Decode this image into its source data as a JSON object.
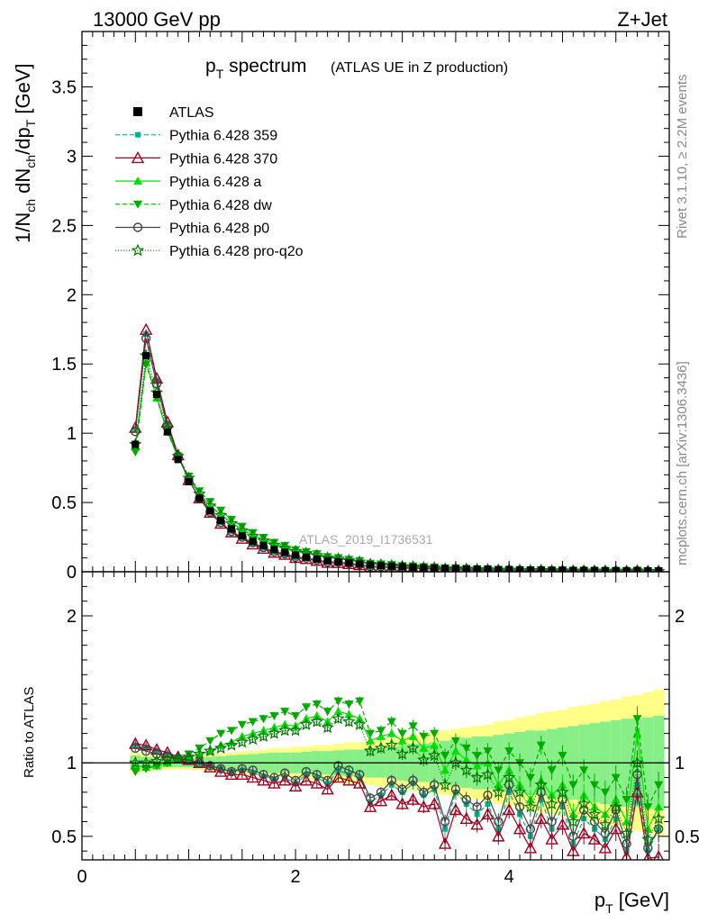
{
  "header": {
    "left": "13000 GeV pp",
    "right": "Z+Jet"
  },
  "title": {
    "main": "p",
    "main_sub": "T",
    "main_rest": " spectrum",
    "paren": "(ATLAS UE in Z production)"
  },
  "watermark": "ATLAS_2019_I1736531",
  "side_text": {
    "rivet": "Rivet 3.1.10, ≥ 2.2M events",
    "mcplots": "mcplots.cern.ch [arXiv:1306.3436]"
  },
  "axes": {
    "ylabel_main": "1/N_ch dN_ch/dp_T [GeV]",
    "ylabel_ratio": "Ratio to ATLAS",
    "xlabel": "p_T [GeV]"
  },
  "colors": {
    "atlas": "#000000",
    "p359": "#00b386",
    "p370": "#990020",
    "pa": "#00e000",
    "pdw": "#00aa00",
    "pp0": "#444444",
    "ppro": "#007700",
    "band_outer": "#ffff88",
    "band_inner": "#88ee88"
  },
  "chart_data": {
    "type": "line",
    "xlim": [
      0,
      5.5
    ],
    "ylim_main": [
      0,
      3.9
    ],
    "ylim_ratio": [
      0.34,
      2.3
    ],
    "x_ticks": [
      0,
      2,
      4
    ],
    "y_ticks_main": [
      0,
      0.5,
      1,
      1.5,
      2,
      2.5,
      3,
      3.5
    ],
    "y_ticks_ratio": [
      0.5,
      1,
      2
    ],
    "x": [
      0.5,
      0.6,
      0.7,
      0.8,
      0.9,
      1.0,
      1.1,
      1.2,
      1.3,
      1.4,
      1.5,
      1.6,
      1.7,
      1.8,
      1.9,
      2.0,
      2.1,
      2.2,
      2.3,
      2.4,
      2.5,
      2.6,
      2.7,
      2.8,
      2.9,
      3.0,
      3.1,
      3.2,
      3.3,
      3.4,
      3.5,
      3.6,
      3.7,
      3.8,
      3.9,
      4.0,
      4.1,
      4.2,
      4.3,
      4.4,
      4.5,
      4.6,
      4.7,
      4.8,
      4.9,
      5.0,
      5.1,
      5.2,
      5.3,
      5.4
    ],
    "atlas": [
      0.92,
      1.56,
      1.28,
      1.01,
      0.81,
      0.65,
      0.53,
      0.44,
      0.37,
      0.31,
      0.26,
      0.22,
      0.19,
      0.16,
      0.14,
      0.12,
      0.105,
      0.092,
      0.08,
      0.071,
      0.063,
      0.056,
      0.05,
      0.045,
      0.04,
      0.036,
      0.033,
      0.03,
      0.027,
      0.025,
      0.023,
      0.021,
      0.019,
      0.018,
      0.016,
      0.015,
      0.014,
      0.013,
      0.012,
      0.011,
      0.0105,
      0.01,
      0.0095,
      0.009,
      0.0085,
      0.008,
      0.0076,
      0.0072,
      0.0068,
      0.0065
    ],
    "band_inner": [
      0.05,
      0.04,
      0.035,
      0.03,
      0.03,
      0.03,
      0.035,
      0.04,
      0.045,
      0.05,
      0.055,
      0.06,
      0.065,
      0.07,
      0.07,
      0.07,
      0.075,
      0.08,
      0.08,
      0.085,
      0.09,
      0.09,
      0.1,
      0.1,
      0.11,
      0.12,
      0.13,
      0.13,
      0.14,
      0.15,
      0.16,
      0.17,
      0.18,
      0.18,
      0.19,
      0.2,
      0.21,
      0.22,
      0.22,
      0.23,
      0.24,
      0.25,
      0.26,
      0.27,
      0.28,
      0.29,
      0.3,
      0.3,
      0.31,
      0.32
    ],
    "band_outer": [
      0.07,
      0.06,
      0.05,
      0.045,
      0.045,
      0.045,
      0.05,
      0.06,
      0.065,
      0.07,
      0.08,
      0.085,
      0.09,
      0.1,
      0.1,
      0.11,
      0.11,
      0.12,
      0.12,
      0.13,
      0.14,
      0.14,
      0.15,
      0.16,
      0.17,
      0.18,
      0.19,
      0.2,
      0.21,
      0.22,
      0.23,
      0.24,
      0.25,
      0.26,
      0.28,
      0.29,
      0.31,
      0.32,
      0.34,
      0.35,
      0.36,
      0.38,
      0.39,
      0.4,
      0.42,
      0.43,
      0.45,
      0.46,
      0.48,
      0.5
    ],
    "series": [
      {
        "key": "p359",
        "name": "Pythia 6.428 359",
        "marker": "square",
        "dash": "5,3",
        "ratio": [
          1.12,
          1.1,
          1.08,
          1.06,
          1.04,
          1.02,
          1.0,
          0.98,
          0.96,
          0.94,
          0.95,
          0.93,
          0.91,
          0.89,
          0.9,
          0.86,
          0.92,
          0.9,
          0.86,
          0.95,
          0.92,
          0.9,
          0.73,
          0.78,
          0.85,
          0.8,
          0.86,
          0.78,
          0.82,
          0.55,
          0.8,
          0.72,
          0.65,
          0.72,
          0.55,
          0.8,
          0.65,
          0.5,
          0.75,
          0.55,
          0.7,
          0.45,
          0.62,
          0.55,
          0.48,
          0.62,
          0.4,
          0.85,
          0.4,
          0.55
        ]
      },
      {
        "key": "p370",
        "name": "Pythia 6.428 370",
        "marker": "triangle-open",
        "dash": "",
        "ratio": [
          1.13,
          1.12,
          1.09,
          1.07,
          1.04,
          1.02,
          1.0,
          0.97,
          0.94,
          0.92,
          0.92,
          0.9,
          0.88,
          0.86,
          0.88,
          0.84,
          0.88,
          0.86,
          0.82,
          0.9,
          0.88,
          0.86,
          0.7,
          0.74,
          0.78,
          0.72,
          0.75,
          0.7,
          0.72,
          0.45,
          0.68,
          0.62,
          0.58,
          0.65,
          0.5,
          0.68,
          0.55,
          0.42,
          0.62,
          0.48,
          0.58,
          0.4,
          0.52,
          0.48,
          0.42,
          0.55,
          0.36,
          0.8,
          0.35,
          0.36
        ]
      },
      {
        "key": "pa",
        "name": "Pythia 6.428 a",
        "marker": "triangle",
        "dash": "",
        "ratio": [
          0.98,
          0.97,
          0.98,
          1.0,
          1.02,
          1.04,
          1.06,
          1.08,
          1.12,
          1.14,
          1.18,
          1.2,
          1.22,
          1.24,
          1.26,
          1.25,
          1.3,
          1.32,
          1.28,
          1.35,
          1.33,
          1.3,
          1.15,
          1.18,
          1.2,
          1.15,
          1.18,
          1.1,
          1.12,
          0.95,
          1.08,
          1.02,
          0.98,
          1.0,
          0.85,
          0.95,
          0.85,
          0.75,
          0.88,
          0.78,
          0.85,
          0.65,
          0.78,
          0.7,
          0.65,
          0.75,
          0.6,
          1.2,
          0.55,
          0.7
        ]
      },
      {
        "key": "pdw",
        "name": "Pythia 6.428 dw",
        "marker": "triangle-down",
        "dash": "5,3",
        "ratio": [
          0.94,
          0.96,
          0.98,
          1.0,
          1.03,
          1.06,
          1.1,
          1.15,
          1.2,
          1.22,
          1.26,
          1.28,
          1.3,
          1.32,
          1.35,
          1.32,
          1.38,
          1.4,
          1.35,
          1.42,
          1.4,
          1.42,
          1.2,
          1.22,
          1.28,
          1.2,
          1.25,
          1.18,
          1.2,
          1.05,
          1.15,
          1.1,
          1.05,
          1.08,
          0.95,
          1.08,
          1.0,
          0.9,
          1.12,
          0.95,
          1.05,
          0.85,
          0.95,
          0.85,
          0.8,
          0.9,
          0.75,
          1.3,
          0.7,
          0.85
        ]
      },
      {
        "key": "pp0",
        "name": "Pythia 6.428 p0",
        "marker": "circle-open",
        "dash": "",
        "ratio": [
          1.1,
          1.08,
          1.06,
          1.04,
          1.03,
          1.02,
          1.0,
          0.98,
          0.96,
          0.94,
          0.96,
          0.95,
          0.92,
          0.9,
          0.93,
          0.88,
          0.94,
          0.92,
          0.88,
          0.98,
          0.95,
          0.92,
          0.76,
          0.8,
          0.88,
          0.82,
          0.88,
          0.8,
          0.85,
          0.6,
          0.82,
          0.75,
          0.7,
          0.78,
          0.6,
          0.85,
          0.7,
          0.55,
          0.8,
          0.6,
          0.75,
          0.5,
          0.68,
          0.6,
          0.52,
          0.68,
          0.45,
          0.92,
          0.42,
          0.55
        ]
      },
      {
        "key": "ppro",
        "name": "Pythia 6.428 pro-q2o",
        "marker": "star",
        "dash": "1,2",
        "ratio": [
          1.0,
          1.0,
          1.01,
          1.02,
          1.03,
          1.04,
          1.06,
          1.08,
          1.1,
          1.12,
          1.14,
          1.16,
          1.18,
          1.2,
          1.22,
          1.22,
          1.26,
          1.28,
          1.24,
          1.3,
          1.28,
          1.26,
          1.08,
          1.1,
          1.12,
          1.06,
          1.1,
          1.02,
          1.05,
          0.85,
          1.0,
          0.95,
          0.9,
          0.92,
          0.8,
          0.9,
          0.8,
          0.7,
          0.85,
          0.72,
          0.8,
          0.6,
          0.72,
          0.65,
          0.58,
          0.7,
          0.52,
          1.0,
          0.48,
          0.62
        ]
      }
    ],
    "legend": {
      "placement": "top-left",
      "first_entry": "ATLAS"
    }
  }
}
